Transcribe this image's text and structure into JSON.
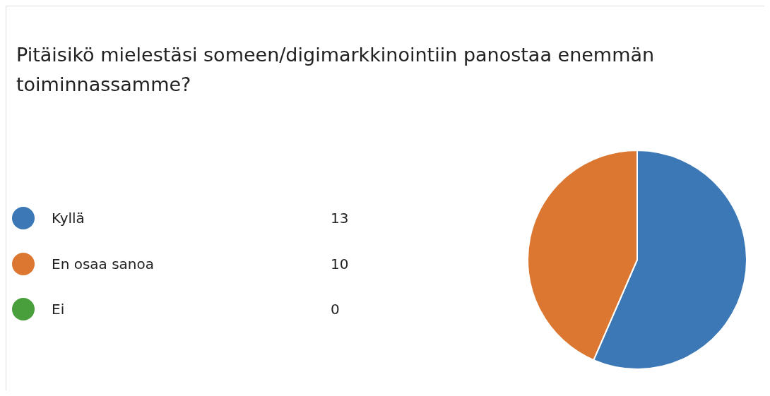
{
  "chart_data": {
    "type": "pie",
    "title": "Pitäisikö mielestäsi someen/digimarkkinointiin panostaa enemmän toiminnassamme?",
    "categories": [
      "Kyllä",
      "En osaa sanoa",
      "Ei"
    ],
    "values": [
      13,
      10,
      0
    ],
    "colors": [
      "#3b78b5",
      "#dc7731",
      "#4a9f3d"
    ],
    "value_labels": [
      "13",
      "10",
      "0"
    ],
    "legend": "left"
  }
}
